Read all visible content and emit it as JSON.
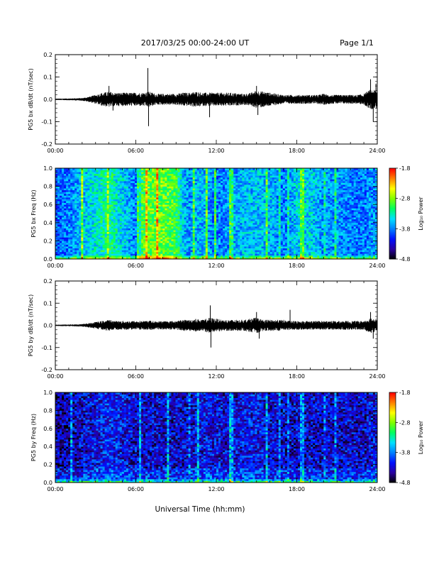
{
  "header": {
    "date_range": "2017/03/25  00:00-24:00 UT",
    "page": "Page 1/1"
  },
  "footer": {
    "xlabel": "Universal Time (hh:mm)"
  },
  "colors": {
    "trace": "#000000",
    "spectrogram_colormap": [
      "#000000",
      "#2a00a0",
      "#0010ff",
      "#0080ff",
      "#00e0ff",
      "#00ff60",
      "#80ff00",
      "#ffff00",
      "#ff8000",
      "#ff0000"
    ]
  },
  "chart_data": [
    {
      "type": "line",
      "name": "panel-bx-waveform",
      "ylabel": "PG5 bx dB/dt (nT/sec)",
      "x_ticks": [
        "00:00",
        "06:00",
        "12:00",
        "18:00",
        "24:00"
      ],
      "xlim_hours": [
        0,
        24
      ],
      "y_ticks": [
        "0.2",
        "0.1",
        "0.0",
        "-0.1",
        "-0.2"
      ],
      "y_tick_values": [
        0.2,
        0.1,
        0.0,
        -0.1,
        -0.2
      ],
      "ylim": [
        -0.2,
        0.2
      ],
      "envelope": {
        "x_hours": [
          0,
          1,
          2,
          2.5,
          3,
          3.5,
          4,
          4.5,
          5,
          5.5,
          6,
          6.5,
          7,
          7.5,
          8,
          8.5,
          9,
          9.5,
          10,
          10.5,
          11,
          11.5,
          12,
          12.5,
          13,
          13.5,
          14,
          14.5,
          15,
          15.5,
          16,
          16.5,
          17,
          17.5,
          18,
          18.5,
          19,
          19.5,
          20,
          20.5,
          21,
          21.5,
          22,
          22.5,
          23,
          23.5,
          24
        ],
        "amplitude": [
          0.003,
          0.004,
          0.006,
          0.012,
          0.02,
          0.03,
          0.035,
          0.03,
          0.03,
          0.03,
          0.03,
          0.03,
          0.035,
          0.025,
          0.025,
          0.025,
          0.025,
          0.03,
          0.03,
          0.035,
          0.03,
          0.03,
          0.03,
          0.03,
          0.03,
          0.028,
          0.025,
          0.028,
          0.04,
          0.035,
          0.03,
          0.025,
          0.02,
          0.02,
          0.02,
          0.02,
          0.02,
          0.02,
          0.025,
          0.02,
          0.02,
          0.02,
          0.02,
          0.02,
          0.025,
          0.045,
          0.04
        ]
      },
      "spikes": [
        {
          "x": 4.0,
          "y": 0.06
        },
        {
          "x": 4.3,
          "y": -0.05
        },
        {
          "x": 6.9,
          "y": 0.14
        },
        {
          "x": 6.95,
          "y": -0.12
        },
        {
          "x": 11.5,
          "y": -0.08
        },
        {
          "x": 15.0,
          "y": 0.06
        },
        {
          "x": 15.1,
          "y": -0.07
        },
        {
          "x": 23.5,
          "y": 0.09
        },
        {
          "x": 23.7,
          "y": -0.1
        },
        {
          "x": 23.9,
          "y": 0.07
        }
      ]
    },
    {
      "type": "heatmap",
      "name": "panel-bx-spectrogram",
      "ylabel": "PG5 bx Freq (Hz)",
      "x_ticks": [
        "00:00",
        "06:00",
        "12:00",
        "18:00",
        "24:00"
      ],
      "y_ticks": [
        "1.0",
        "0.8",
        "0.6",
        "0.4",
        "0.2",
        "0.0"
      ],
      "y_tick_values": [
        1.0,
        0.8,
        0.6,
        0.4,
        0.2,
        0.0
      ],
      "ylim": [
        0,
        1.0
      ],
      "colorbar": {
        "label": "Log₁₀ Power",
        "ticks": [
          "-1.8",
          "-2.8",
          "-3.8",
          "-4.8"
        ],
        "tick_values": [
          -1.8,
          -2.8,
          -3.8,
          -4.8
        ],
        "range": [
          -4.8,
          -1.8
        ]
      },
      "column_activity": {
        "x_hours": [
          0,
          1,
          2,
          3,
          4,
          5,
          6,
          6.5,
          7,
          8,
          9,
          9.5,
          10,
          11,
          12,
          13,
          14,
          15,
          16,
          17,
          18,
          19,
          20,
          21,
          22,
          23,
          24
        ],
        "log_power": [
          -3.9,
          -3.8,
          -3.6,
          -3.4,
          -3.2,
          -3.5,
          -3.8,
          -3.0,
          -2.9,
          -2.9,
          -3.0,
          -3.6,
          -3.7,
          -3.6,
          -3.8,
          -3.7,
          -3.6,
          -3.6,
          -3.6,
          -3.8,
          -3.5,
          -3.5,
          -3.7,
          -3.7,
          -3.8,
          -3.8,
          -3.7
        ]
      }
    },
    {
      "type": "line",
      "name": "panel-by-waveform",
      "ylabel": "PG5 by dB/dt (nT/sec)",
      "x_ticks": [
        "00:00",
        "06:00",
        "12:00",
        "18:00",
        "24:00"
      ],
      "xlim_hours": [
        0,
        24
      ],
      "y_ticks": [
        "0.2",
        "0.1",
        "0.0",
        "-0.1",
        "-0.2"
      ],
      "y_tick_values": [
        0.2,
        0.1,
        0.0,
        -0.1,
        -0.2
      ],
      "ylim": [
        -0.2,
        0.2
      ],
      "envelope": {
        "x_hours": [
          0,
          1,
          2,
          2.5,
          3,
          3.5,
          4,
          4.5,
          5,
          5.5,
          6,
          6.5,
          7,
          7.5,
          8,
          8.5,
          9,
          9.5,
          10,
          10.5,
          11,
          11.5,
          12,
          12.5,
          13,
          13.5,
          14,
          14.5,
          15,
          15.5,
          16,
          16.5,
          17,
          17.5,
          18,
          18.5,
          19,
          19.5,
          20,
          20.5,
          21,
          21.5,
          22,
          22.5,
          23,
          23.5,
          24
        ],
        "amplitude": [
          0.003,
          0.004,
          0.006,
          0.01,
          0.015,
          0.02,
          0.025,
          0.02,
          0.02,
          0.02,
          0.02,
          0.02,
          0.022,
          0.018,
          0.02,
          0.02,
          0.02,
          0.025,
          0.025,
          0.03,
          0.025,
          0.035,
          0.03,
          0.025,
          0.025,
          0.025,
          0.025,
          0.03,
          0.035,
          0.025,
          0.025,
          0.025,
          0.025,
          0.02,
          0.02,
          0.02,
          0.02,
          0.02,
          0.02,
          0.02,
          0.02,
          0.02,
          0.02,
          0.02,
          0.02,
          0.035,
          0.03
        ]
      },
      "spikes": [
        {
          "x": 11.55,
          "y": 0.09
        },
        {
          "x": 11.6,
          "y": -0.1
        },
        {
          "x": 15.0,
          "y": 0.06
        },
        {
          "x": 15.2,
          "y": -0.06
        },
        {
          "x": 17.5,
          "y": 0.07
        },
        {
          "x": 23.5,
          "y": 0.06
        },
        {
          "x": 23.7,
          "y": -0.06
        }
      ]
    },
    {
      "type": "heatmap",
      "name": "panel-by-spectrogram",
      "ylabel": "PG5 by Freq (Hz)",
      "x_ticks": [
        "00:00",
        "06:00",
        "12:00",
        "18:00",
        "24:00"
      ],
      "y_ticks": [
        "1.0",
        "0.8",
        "0.6",
        "0.4",
        "0.2",
        "0.0"
      ],
      "y_tick_values": [
        1.0,
        0.8,
        0.6,
        0.4,
        0.2,
        0.0
      ],
      "ylim": [
        0,
        1.0
      ],
      "colorbar": {
        "label": "Log₁₀ Power",
        "ticks": [
          "-1.8",
          "-2.8",
          "-3.8",
          "-4.8"
        ],
        "tick_values": [
          -1.8,
          -2.8,
          -3.8,
          -4.8
        ],
        "range": [
          -4.8,
          -1.8
        ]
      },
      "column_activity": {
        "x_hours": [
          0,
          1,
          2,
          3,
          4,
          5,
          6,
          7,
          8,
          9,
          10,
          11,
          12,
          13,
          14,
          15,
          16,
          17,
          18,
          19,
          20,
          21,
          22,
          23,
          24
        ],
        "log_power": [
          -4.2,
          -4.2,
          -4.1,
          -4.0,
          -3.9,
          -4.0,
          -4.1,
          -4.1,
          -4.1,
          -4.1,
          -4.1,
          -4.0,
          -4.0,
          -4.1,
          -4.0,
          -4.0,
          -4.1,
          -4.1,
          -4.1,
          -4.1,
          -4.1,
          -4.1,
          -4.1,
          -4.1,
          -4.0
        ]
      }
    }
  ]
}
